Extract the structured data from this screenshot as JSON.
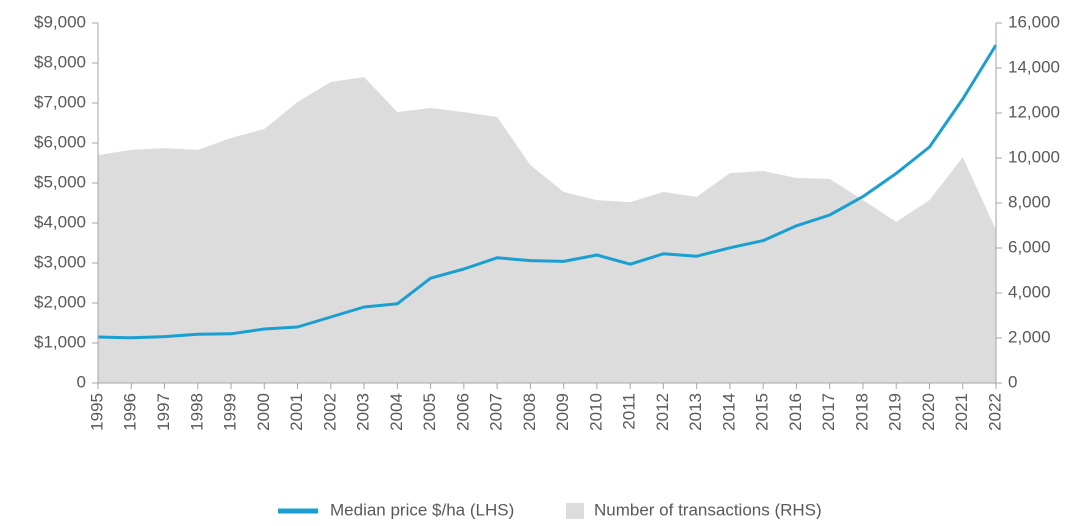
{
  "chart_data": {
    "type": "line",
    "categories": [
      "1995",
      "1996",
      "1997",
      "1998",
      "1999",
      "2000",
      "2001",
      "2002",
      "2003",
      "2004",
      "2005",
      "2006",
      "2007",
      "2008",
      "2009",
      "2010",
      "2011",
      "2012",
      "2013",
      "2014",
      "2015",
      "2016",
      "2017",
      "2018",
      "2019",
      "2020",
      "2021",
      "2022"
    ],
    "series": [
      {
        "name": "Median price $/ha (LHS)",
        "color": "#1a9fd0",
        "type": "line",
        "axis": "y",
        "values": [
          1150,
          1130,
          1160,
          1220,
          1230,
          1350,
          1400,
          1650,
          1900,
          1980,
          2620,
          2850,
          3130,
          3060,
          3040,
          3200,
          2970,
          3230,
          3170,
          3380,
          3560,
          3930,
          4200,
          4660,
          5240,
          5900,
          7100,
          8450
        ]
      },
      {
        "name": "Number of transactions (RHS)",
        "color": "#dcdcdd",
        "type": "area",
        "axis": "y2",
        "values": [
          10130,
          10360,
          10440,
          10360,
          10890,
          11290,
          12490,
          13380,
          13600,
          12040,
          12220,
          12040,
          11820,
          9690,
          8490,
          8130,
          8040,
          8490,
          8270,
          9330,
          9420,
          9110,
          9070,
          8130,
          7160,
          8130,
          10040,
          6800
        ]
      }
    ],
    "ylim": [
      0,
      9000
    ],
    "yticks": [
      0,
      {
        "value": 1000,
        "label": "$1,000"
      },
      {
        "value": 2000,
        "label": "$2,000"
      },
      {
        "value": 3000,
        "label": "$3,000"
      },
      {
        "value": 4000,
        "label": "$4,000"
      },
      {
        "value": 5000,
        "label": "$5,000"
      },
      {
        "value": 6000,
        "label": "$6,000"
      },
      {
        "value": 7000,
        "label": "$7,000"
      },
      {
        "value": 8000,
        "label": "$8,000"
      },
      {
        "value": 9000,
        "label": "$9,000"
      }
    ],
    "y2lim": [
      0,
      16000
    ],
    "y2ticks": [
      0,
      {
        "value": 2000,
        "label": "2,000"
      },
      {
        "value": 4000,
        "label": "4,000"
      },
      {
        "value": 6000,
        "label": "6,000"
      },
      {
        "value": 8000,
        "label": "8,000"
      },
      {
        "value": 10000,
        "label": "10,000"
      },
      {
        "value": 12000,
        "label": "12,000"
      },
      {
        "value": 14000,
        "label": "14,000"
      },
      {
        "value": 16000,
        "label": "16,000"
      }
    ],
    "legend": "bottom"
  }
}
